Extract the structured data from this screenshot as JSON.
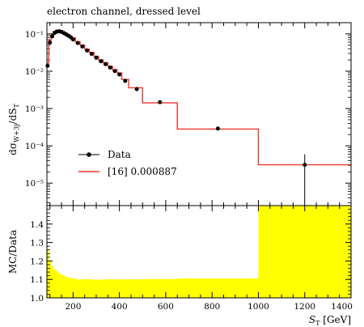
{
  "chart_data": [
    {
      "type": "scatter",
      "title": "electron channel, dressed level",
      "xlabel": "",
      "ylabel": "dσW+3j/dST",
      "yscale": "log",
      "xlim": [
        87,
        1400
      ],
      "ylim": [
        2.5e-06,
        0.2
      ],
      "ytick_labels": [
        "10⁻¹",
        "10⁻²",
        "10⁻³",
        "10⁻⁴",
        "10⁻⁵"
      ],
      "legend": {
        "placement": "lower-left"
      },
      "data_series": {
        "name": "Data",
        "color": "#000000",
        "x": [
          90,
          100,
          110,
          120,
          130,
          140,
          150,
          160,
          170,
          180,
          190,
          200,
          220,
          240,
          260,
          280,
          300,
          320,
          340,
          360,
          380,
          400,
          425,
          475,
          575,
          825,
          1200
        ],
        "y": [
          0.014,
          0.058,
          0.086,
          0.106,
          0.115,
          0.117,
          0.113,
          0.105,
          0.097,
          0.089,
          0.081,
          0.071,
          0.057,
          0.046,
          0.036,
          0.029,
          0.023,
          0.0185,
          0.0155,
          0.0125,
          0.0101,
          0.0082,
          0.0055,
          0.0033,
          0.00148,
          0.00029,
          3.1e-05
        ],
        "yerr_low": [
          0,
          0,
          0,
          0,
          0,
          0,
          0,
          0,
          0,
          0,
          0,
          0,
          0,
          0,
          0,
          0,
          0,
          0,
          0,
          0,
          0,
          0,
          0,
          0,
          0,
          0,
          2.75e-05
        ],
        "yerr_high": [
          0,
          0,
          0,
          0,
          0,
          0,
          0,
          0,
          0,
          0,
          0,
          0,
          0,
          0,
          0,
          0,
          0,
          0,
          0,
          0,
          0,
          0,
          0,
          0,
          0,
          0,
          2.8e-05
        ]
      },
      "mc_series": {
        "name": "[16] 0.000887",
        "color": "#e8372a",
        "bin_edges": [
          87,
          95,
          105,
          115,
          125,
          135,
          145,
          155,
          165,
          175,
          185,
          195,
          210,
          230,
          250,
          270,
          290,
          310,
          330,
          350,
          370,
          390,
          410,
          440,
          500,
          650,
          1000,
          1400
        ],
        "values": [
          0.0165,
          0.066,
          0.096,
          0.117,
          0.126,
          0.128,
          0.123,
          0.114,
          0.106,
          0.097,
          0.088,
          0.078,
          0.062,
          0.05,
          0.039,
          0.032,
          0.025,
          0.0202,
          0.0169,
          0.0137,
          0.011,
          0.009,
          0.006,
          0.0036,
          0.00142,
          0.000282,
          3.1e-05
        ]
      }
    },
    {
      "type": "area",
      "xlabel": "ST [GeV]",
      "ylabel": "MC/Data",
      "xlim": [
        87,
        1400
      ],
      "ylim": [
        1.0,
        1.5
      ],
      "xticks": [
        200,
        400,
        600,
        800,
        1000,
        1200,
        1400
      ],
      "yticks": [
        1.0,
        1.1,
        1.2,
        1.3,
        1.4
      ],
      "yticks_labels": [
        "1.0",
        "1.1",
        "1.2",
        "1.3",
        "1.4"
      ],
      "band_color": "#ffff00",
      "band": {
        "bin_edges": [
          87,
          95,
          105,
          115,
          125,
          135,
          145,
          155,
          165,
          175,
          185,
          195,
          210,
          230,
          250,
          270,
          290,
          310,
          330,
          350,
          370,
          390,
          410,
          440,
          500,
          650,
          1000,
          1400
        ],
        "upper": [
          1.26,
          1.2,
          1.17,
          1.155,
          1.145,
          1.135,
          1.125,
          1.12,
          1.115,
          1.11,
          1.108,
          1.105,
          1.1,
          1.1,
          1.102,
          1.1,
          1.098,
          1.098,
          1.1,
          1.1,
          1.1,
          1.1,
          1.1,
          1.1,
          1.102,
          1.105,
          1.5
        ]
      }
    }
  ]
}
